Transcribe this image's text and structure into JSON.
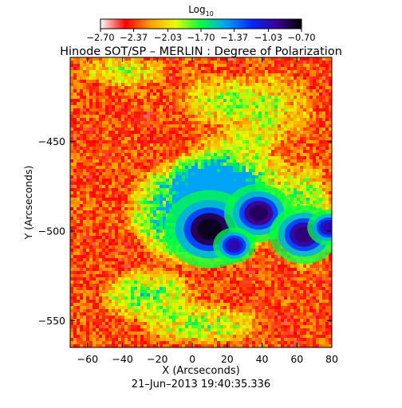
{
  "chart_data": {
    "type": "heatmap",
    "title": "Hinode SOT/SP – MERLIN : Degree of Polarization",
    "subtitle": "21–Jun–2013 19:40:35.336",
    "xlabel": "X (Arcseconds)",
    "ylabel": "Y (Arcseconds)",
    "xlim": [
      -70,
      80
    ],
    "ylim": [
      -565,
      -403
    ],
    "x_ticks": [
      -60,
      -40,
      -20,
      0,
      20,
      40,
      60,
      80
    ],
    "y_ticks": [
      -450,
      -500,
      -550
    ],
    "colorbar": {
      "label": "Log",
      "label_subscript": "10",
      "range": [
        -2.7,
        -0.7
      ],
      "ticks": [
        "−2.70",
        "−2.37",
        "−2.03",
        "−1.70",
        "−1.37",
        "−1.03",
        "−0.70"
      ],
      "colormap": [
        "#ffffff",
        "#ff0000",
        "#ffa000",
        "#e6ff00",
        "#00ff40",
        "#00a0ff",
        "#0028ff",
        "#3c0096",
        "#000000"
      ]
    },
    "features": [
      {
        "name": "sunspot umbra",
        "x": 10,
        "y": -499,
        "log_value": -0.75
      },
      {
        "name": "sunspot umbra",
        "x": 38,
        "y": -490,
        "log_value": -0.85
      },
      {
        "name": "sunspot umbra",
        "x": 64,
        "y": -502,
        "log_value": -0.9
      },
      {
        "name": "pore",
        "x": 24,
        "y": -508,
        "log_value": -1.0
      },
      {
        "name": "pore",
        "x": 78,
        "y": -498,
        "log_value": -1.0
      }
    ]
  }
}
